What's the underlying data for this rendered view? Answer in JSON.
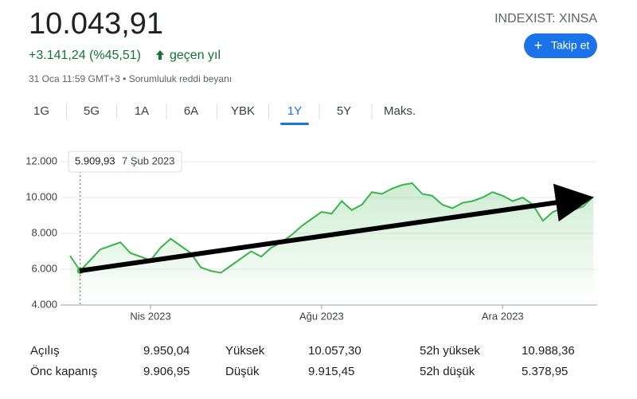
{
  "header": {
    "price": "10.043,91",
    "change": "+3.141,24 (%45,51)",
    "change_period": "geçen yıl",
    "timestamp": "31 Oca 11:59 GMT+3 • Sorumluluk reddi beyanı",
    "ticker": "INDEXIST: XINSA",
    "follow_button": "Takip et"
  },
  "tabs": [
    "1G",
    "5G",
    "1A",
    "6A",
    "YBK",
    "1Y",
    "5Y",
    "Maks."
  ],
  "active_tab": 5,
  "chart_data": {
    "type": "line",
    "color": "#3ab54a",
    "categories": [
      null,
      null,
      null,
      null,
      null,
      null,
      null,
      null,
      "Nis 2023",
      null,
      null,
      null,
      null,
      null,
      null,
      null,
      null,
      null,
      null,
      null,
      null,
      null,
      null,
      null,
      null,
      "Ağu 2023",
      null,
      null,
      null,
      null,
      null,
      null,
      null,
      null,
      null,
      null,
      null,
      null,
      null,
      null,
      null,
      null,
      null,
      "Ara 2023",
      null,
      null,
      null,
      null,
      null,
      null,
      null,
      null,
      null
    ],
    "values": [
      6750,
      5909.93,
      6500,
      7100,
      7300,
      7500,
      6900,
      6700,
      6500,
      7200,
      7700,
      7300,
      6900,
      6100,
      5900,
      5800,
      6200,
      6600,
      7000,
      6700,
      7200,
      7500,
      7900,
      8400,
      8800,
      9200,
      9100,
      9800,
      9300,
      9600,
      10300,
      10200,
      10500,
      10700,
      10800,
      10200,
      10100,
      9600,
      9400,
      9700,
      9800,
      10000,
      10300,
      10100,
      9800,
      10000,
      9600,
      8700,
      9200,
      9400,
      9300,
      9500,
      10043.91
    ],
    "ylim": [
      4000,
      12000
    ],
    "yticks": [
      {
        "value": 4000,
        "label": "4.000"
      },
      {
        "value": 6000,
        "label": "6.000"
      },
      {
        "value": 8000,
        "label": "8.000"
      },
      {
        "value": 10000,
        "label": "10.000"
      },
      {
        "value": 12000,
        "label": "12.000"
      }
    ],
    "grid": true,
    "tooltip": {
      "value": "5.909,93",
      "date": "7 Şub 2023"
    }
  },
  "stats": [
    [
      "Açılış",
      "9.950,04",
      "Yüksek",
      "10.057,30",
      "52h yüksek",
      "10.988,36"
    ],
    [
      "Önc kapanış",
      "9.906,95",
      "Düşük",
      "9.915,45",
      "52h düşük",
      "5.378,95"
    ]
  ]
}
